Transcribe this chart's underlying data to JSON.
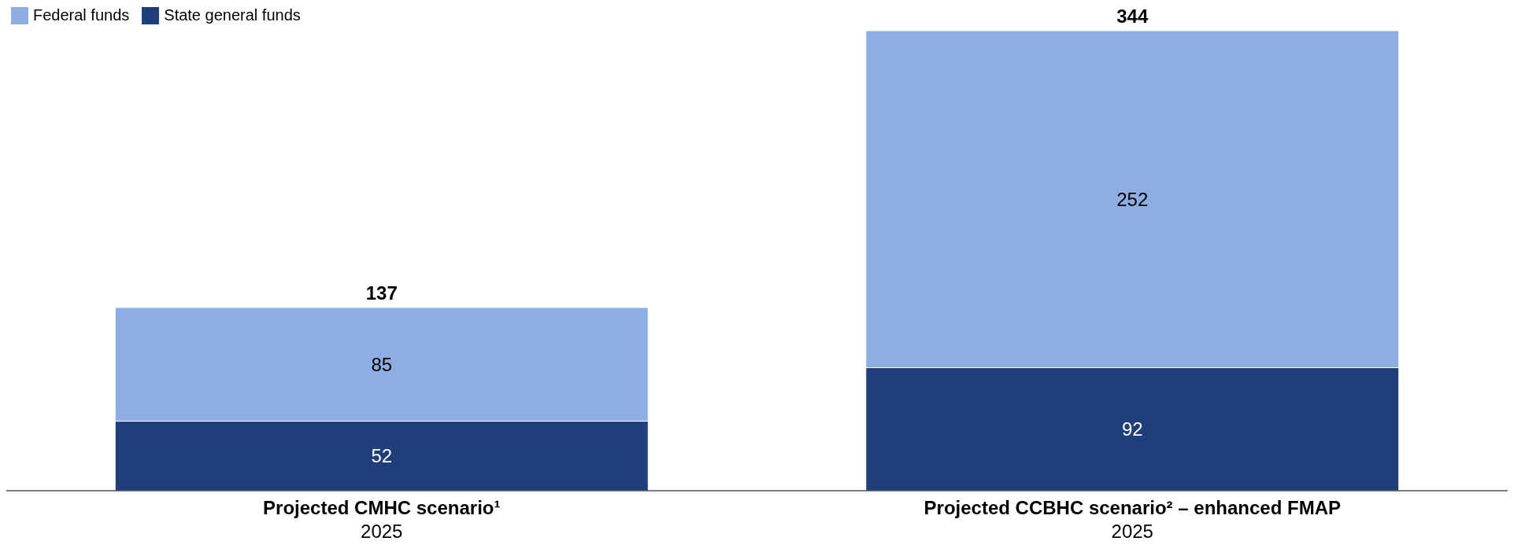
{
  "chart_data": {
    "type": "bar",
    "stacked": true,
    "categories": [
      "Projected CMHC scenario¹\n2025",
      "Projected CCBHC scenario² – enhanced FMAP\n2025"
    ],
    "series": [
      {
        "name": "State general funds",
        "color": "#1f3f7a",
        "values": [
          52,
          92
        ]
      },
      {
        "name": "Federal funds",
        "color": "#8eaee3",
        "values": [
          85,
          252
        ]
      }
    ],
    "data_labels": true,
    "totals": [
      "137",
      "344"
    ],
    "legend": "top left"
  }
}
